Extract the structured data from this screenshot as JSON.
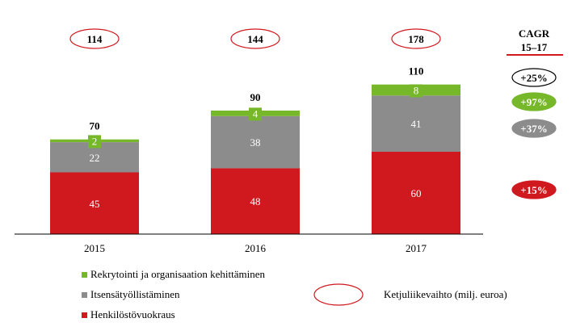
{
  "chart_data": {
    "type": "bar",
    "stacked": true,
    "categories": [
      "2015",
      "2016",
      "2017"
    ],
    "series": [
      {
        "name": "Henkilöstövuokraus",
        "values": [
          45,
          48,
          60
        ],
        "color": "#d0181f"
      },
      {
        "name": "Itsensätyöllistäminen",
        "values": [
          22,
          38,
          41
        ],
        "color": "#8c8c8c"
      },
      {
        "name": "Rekrytointi ja organisaation kehittäminen",
        "values": [
          2,
          4,
          8
        ],
        "color": "#76b82a"
      }
    ],
    "totals": [
      70,
      90,
      110
    ],
    "total_labels": [
      "70",
      "90",
      "110"
    ],
    "chain_revenue": {
      "name": "Ketjuliikevaihto (milj. euroa)",
      "values": [
        "114",
        "144",
        "178"
      ]
    },
    "cagr": {
      "title_line1": "CAGR",
      "title_line2": "15–17",
      "items": [
        {
          "label": "+25%",
          "fill": "#ffffff",
          "text_color": "#000000"
        },
        {
          "label": "+97%",
          "fill": "#76b82a",
          "text_color": "#ffffff"
        },
        {
          "label": "+37%",
          "fill": "#8c8c8c",
          "text_color": "#ffffff"
        },
        {
          "label": "+15%",
          "fill": "#d0181f",
          "text_color": "#ffffff"
        }
      ]
    },
    "ylim": [
      0,
      115
    ],
    "grid": false,
    "legend_position": "bottom-left"
  }
}
